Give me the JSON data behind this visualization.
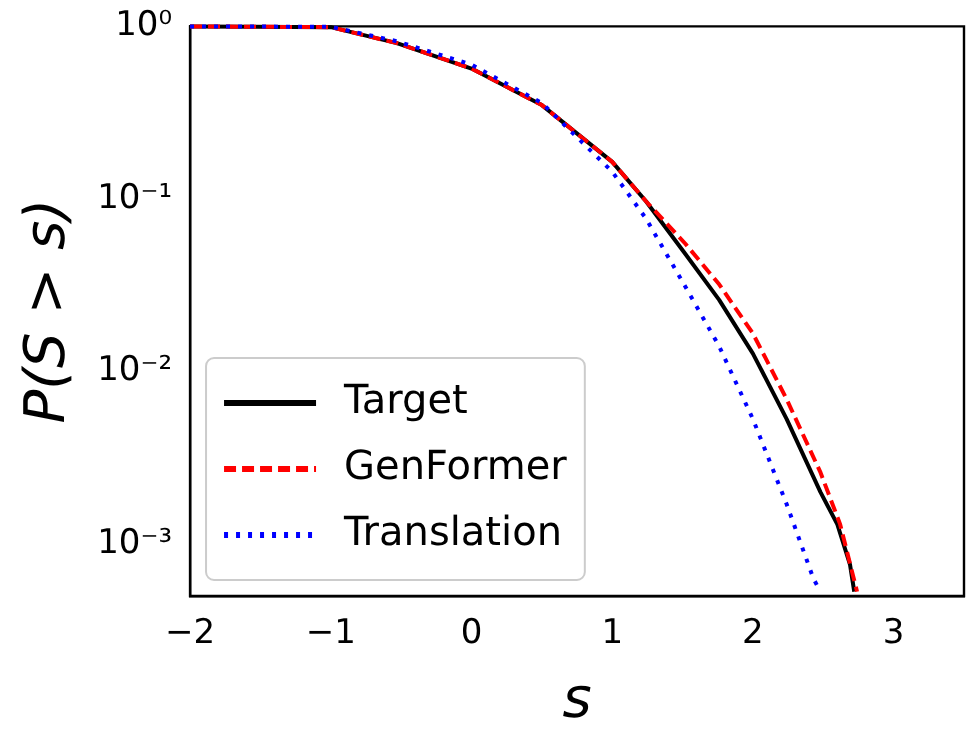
{
  "chart_data": {
    "type": "line",
    "xlabel": "s",
    "ylabel": "P(S > s)",
    "log": "y",
    "grid": false,
    "legend": "bottom left",
    "marker": "none",
    "xlim": [
      -2,
      3.5
    ],
    "xticks": [
      -2,
      -1,
      0,
      1,
      2,
      3
    ],
    "ylim": [
      0.0005,
      1
    ],
    "yticks": [
      {
        "value": 0.001,
        "label": "10⁻³"
      },
      {
        "value": 0.01,
        "label": "10⁻²"
      },
      {
        "value": 0.1,
        "label": "10⁻¹"
      },
      {
        "value": 1,
        "label": "10⁰"
      }
    ],
    "series": [
      {
        "name": "Target",
        "color": "#000000",
        "line_style": "solid",
        "x": [
          -2,
          -1,
          -0.53,
          0,
          0.5,
          1,
          1.24,
          1.52,
          1.76,
          2,
          2.24,
          2.48,
          2.6,
          2.69,
          2.72
        ],
        "values": [
          1,
          0.99,
          0.8,
          0.57,
          0.35,
          0.164,
          0.097,
          0.048,
          0.026,
          0.0127,
          0.0053,
          0.002,
          0.0013,
          0.00076,
          0.00053
        ]
      },
      {
        "name": "GenFormer",
        "color": "#ff0000",
        "line_style": "dashed",
        "x": [
          -2,
          -1,
          -0.53,
          0,
          0.5,
          1,
          1.24,
          1.52,
          1.76,
          2,
          2.24,
          2.48,
          2.62,
          2.74
        ],
        "values": [
          1,
          0.99,
          0.8,
          0.57,
          0.35,
          0.164,
          0.097,
          0.055,
          0.032,
          0.0166,
          0.0069,
          0.0026,
          0.0013,
          0.00053
        ]
      },
      {
        "name": "Translation",
        "color": "#0000ff",
        "line_style": "dotted",
        "x": [
          -2,
          -1,
          -0.53,
          0,
          0.5,
          1,
          1.24,
          1.52,
          1.76,
          2,
          2.24,
          2.43,
          2.48
        ],
        "values": [
          1,
          0.995,
          0.82,
          0.6,
          0.36,
          0.144,
          0.077,
          0.031,
          0.014,
          0.0053,
          0.0017,
          0.00063,
          0.00053
        ]
      }
    ]
  }
}
